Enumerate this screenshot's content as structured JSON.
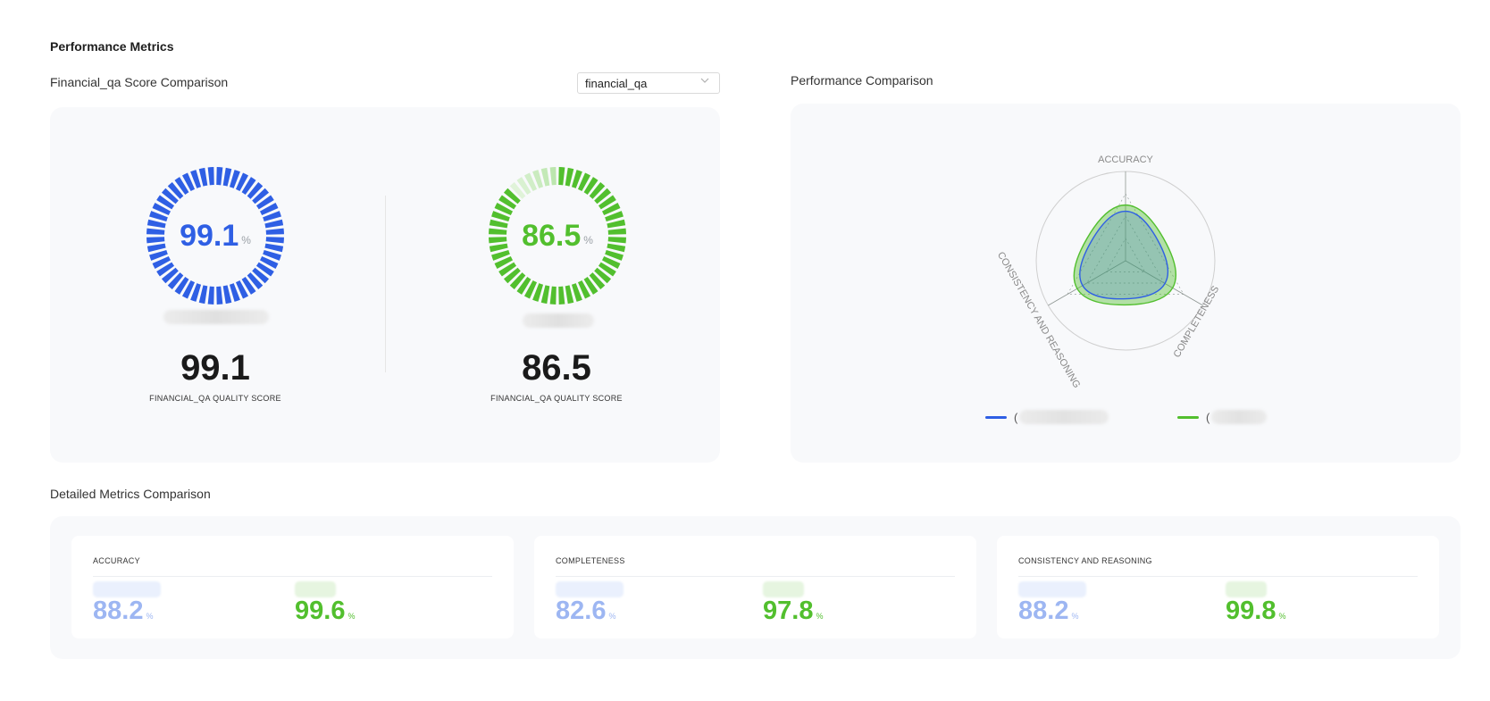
{
  "page": {
    "title": "Performance Metrics"
  },
  "score_section": {
    "title": "Financial_qa Score Comparison",
    "dataset_select": {
      "value": "financial_qa",
      "icon": "chevron-down-icon"
    },
    "models": [
      {
        "gauge_value": "99.1",
        "unit": "%",
        "score": "99.1",
        "caption": "FINANCIAL_QA QUALITY SCORE",
        "fraction": 0.991,
        "color": "#2f5fe4"
      },
      {
        "gauge_value": "86.5",
        "unit": "%",
        "score": "86.5",
        "caption": "FINANCIAL_QA QUALITY SCORE",
        "fraction": 0.865,
        "color": "#52bf2e"
      }
    ]
  },
  "radar_section": {
    "title": "Performance Comparison",
    "axes": [
      "ACCURACY",
      "COMPLETENESS",
      "CONSISTENCY AND REASONING"
    ],
    "series": [
      {
        "values": [
          88.2,
          82.6,
          88.2
        ],
        "color": "#2f5fe4"
      },
      {
        "values": [
          99.6,
          97.8,
          99.8
        ],
        "color": "#52bf2e"
      }
    ],
    "legend": [
      {
        "paren": "(",
        "color": "#2f5fe4"
      },
      {
        "paren": "(",
        "color": "#52bf2e"
      }
    ]
  },
  "detail_section": {
    "title": "Detailed Metrics Comparison",
    "unit": "%",
    "cards": [
      {
        "title": "ACCURACY",
        "a": "88.2",
        "b": "99.6"
      },
      {
        "title": "COMPLETENESS",
        "a": "82.6",
        "b": "97.8"
      },
      {
        "title": "CONSISTENCY AND REASONING",
        "a": "88.2",
        "b": "99.8"
      }
    ],
    "colors": {
      "a": "#9db6f2",
      "b": "#52bf2e"
    }
  }
}
